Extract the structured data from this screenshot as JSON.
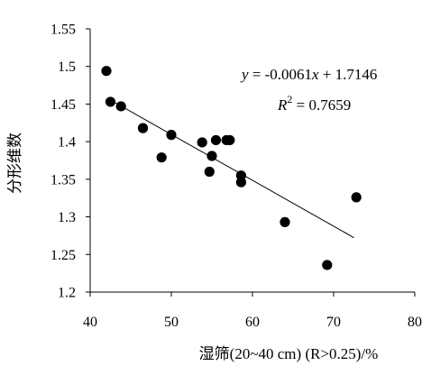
{
  "chart_data": {
    "type": "scatter",
    "xlabel": "湿筛(20~40 cm) (R>0.25)/%",
    "ylabel": "分形维数",
    "xlim": [
      40,
      80
    ],
    "ylim": [
      1.2,
      1.55
    ],
    "x_ticks": [
      "40",
      "50",
      "60",
      "70",
      "80"
    ],
    "y_ticks": [
      "1.2",
      "1.25",
      "1.3",
      "1.35",
      "1.4",
      "1.45",
      "1.5",
      "1.55"
    ],
    "grid": false,
    "points": [
      {
        "x": 42.0,
        "y": 1.494
      },
      {
        "x": 42.5,
        "y": 1.453
      },
      {
        "x": 43.8,
        "y": 1.447
      },
      {
        "x": 46.5,
        "y": 1.418
      },
      {
        "x": 48.8,
        "y": 1.379
      },
      {
        "x": 50.0,
        "y": 1.409
      },
      {
        "x": 53.8,
        "y": 1.399
      },
      {
        "x": 54.7,
        "y": 1.36
      },
      {
        "x": 55.0,
        "y": 1.381
      },
      {
        "x": 55.5,
        "y": 1.402
      },
      {
        "x": 56.8,
        "y": 1.402
      },
      {
        "x": 57.2,
        "y": 1.402
      },
      {
        "x": 58.6,
        "y": 1.355
      },
      {
        "x": 58.6,
        "y": 1.346
      },
      {
        "x": 64.0,
        "y": 1.293
      },
      {
        "x": 69.2,
        "y": 1.236
      },
      {
        "x": 72.8,
        "y": 1.326
      }
    ],
    "trendline": {
      "slope": -0.0061,
      "intercept": 1.7146,
      "x_range": [
        43.0,
        72.5
      ]
    },
    "annotations": {
      "equation_parts": [
        "y",
        " = -0.0061",
        "x",
        " + 1.7146"
      ],
      "r2_parts": [
        "R",
        "2",
        " = 0.7659"
      ]
    }
  }
}
